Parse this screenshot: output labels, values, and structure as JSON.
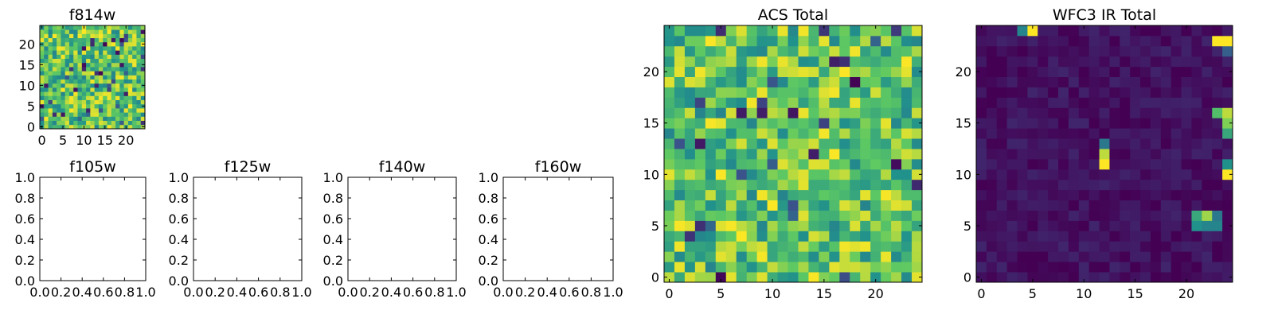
{
  "chart_data": [
    {
      "type": "heatmap",
      "title": "f814w",
      "grid": false,
      "xlim": [
        -0.5,
        24.5
      ],
      "ylim": [
        -0.5,
        24.5
      ],
      "xticks": [
        0,
        5,
        10,
        15,
        20
      ],
      "yticks": [
        0,
        5,
        10,
        15,
        20
      ],
      "size": [
        25,
        25
      ],
      "color_range": [
        0,
        1
      ],
      "seed": 814,
      "colormap": [
        "#440154",
        "#3b528b",
        "#21918c",
        "#5ec962",
        "#fde725"
      ]
    },
    {
      "type": "table",
      "title": "f105w",
      "empty": true,
      "xlim": [
        0,
        1
      ],
      "ylim": [
        0,
        1
      ],
      "xticks": [
        "0.0",
        "0.2",
        "0.4",
        "0.6",
        "0.8",
        "1.0"
      ],
      "yticks": [
        "0.0",
        "0.2",
        "0.4",
        "0.6",
        "0.8",
        "1.0"
      ]
    },
    {
      "type": "table",
      "title": "f125w",
      "empty": true,
      "xlim": [
        0,
        1
      ],
      "ylim": [
        0,
        1
      ],
      "xticks": [
        "0.0",
        "0.2",
        "0.4",
        "0.6",
        "0.8",
        "1.0"
      ],
      "yticks": [
        "0.0",
        "0.2",
        "0.4",
        "0.6",
        "0.8",
        "1.0"
      ]
    },
    {
      "type": "table",
      "title": "f140w",
      "empty": true,
      "xlim": [
        0,
        1
      ],
      "ylim": [
        0,
        1
      ],
      "xticks": [
        "0.0",
        "0.2",
        "0.4",
        "0.6",
        "0.8",
        "1.0"
      ],
      "yticks": [
        "0.0",
        "0.2",
        "0.4",
        "0.6",
        "0.8",
        "1.0"
      ]
    },
    {
      "type": "table",
      "title": "f160w",
      "empty": true,
      "xlim": [
        0,
        1
      ],
      "ylim": [
        0,
        1
      ],
      "xticks": [
        "0.0",
        "0.2",
        "0.4",
        "0.6",
        "0.8",
        "1.0"
      ],
      "yticks": [
        "0.0",
        "0.2",
        "0.4",
        "0.6",
        "0.8",
        "1.0"
      ]
    },
    {
      "type": "heatmap",
      "title": "ACS Total",
      "grid": false,
      "xlim": [
        -0.5,
        24.5
      ],
      "ylim": [
        -0.5,
        24.5
      ],
      "xticks": [
        0,
        5,
        10,
        15,
        20
      ],
      "yticks": [
        0,
        5,
        10,
        15,
        20
      ],
      "size": [
        25,
        25
      ],
      "color_range": [
        0,
        1
      ],
      "seed": 2718,
      "colormap": [
        "#440154",
        "#3b528b",
        "#21918c",
        "#5ec962",
        "#fde725"
      ]
    },
    {
      "type": "heatmap",
      "title": "WFC3 IR Total",
      "grid": false,
      "xlim": [
        -0.5,
        24.5
      ],
      "ylim": [
        -0.5,
        24.5
      ],
      "xticks": [
        0,
        5,
        10,
        15,
        20
      ],
      "yticks": [
        0,
        5,
        10,
        15,
        20
      ],
      "size": [
        25,
        25
      ],
      "color_range": [
        0,
        1
      ],
      "background_level": 0.05,
      "seed": 3141,
      "hot_pixels": [
        {
          "x": 5,
          "y": 24,
          "value": 1.0
        },
        {
          "x": 4,
          "y": 24,
          "value": 0.45
        },
        {
          "x": 24,
          "y": 23,
          "value": 1.0
        },
        {
          "x": 23,
          "y": 23,
          "value": 1.0
        },
        {
          "x": 24,
          "y": 22,
          "value": 0.3
        },
        {
          "x": 12,
          "y": 11,
          "value": 1.0
        },
        {
          "x": 12,
          "y": 12,
          "value": 0.9
        },
        {
          "x": 12,
          "y": 13,
          "value": 0.4
        },
        {
          "x": 23,
          "y": 16,
          "value": 0.7
        },
        {
          "x": 24,
          "y": 16,
          "value": 0.9
        },
        {
          "x": 24,
          "y": 15,
          "value": 0.8
        },
        {
          "x": 24,
          "y": 14,
          "value": 0.6
        },
        {
          "x": 24,
          "y": 10,
          "value": 1.0
        },
        {
          "x": 24,
          "y": 11,
          "value": 0.5
        },
        {
          "x": 21,
          "y": 6,
          "value": 0.6
        },
        {
          "x": 22,
          "y": 6,
          "value": 0.85
        },
        {
          "x": 23,
          "y": 6,
          "value": 0.4
        },
        {
          "x": 21,
          "y": 5,
          "value": 0.5
        },
        {
          "x": 22,
          "y": 5,
          "value": 0.45
        },
        {
          "x": 23,
          "y": 5,
          "value": 0.45
        }
      ],
      "colormap": [
        "#440154",
        "#3b528b",
        "#21918c",
        "#5ec962",
        "#fde725"
      ]
    }
  ]
}
